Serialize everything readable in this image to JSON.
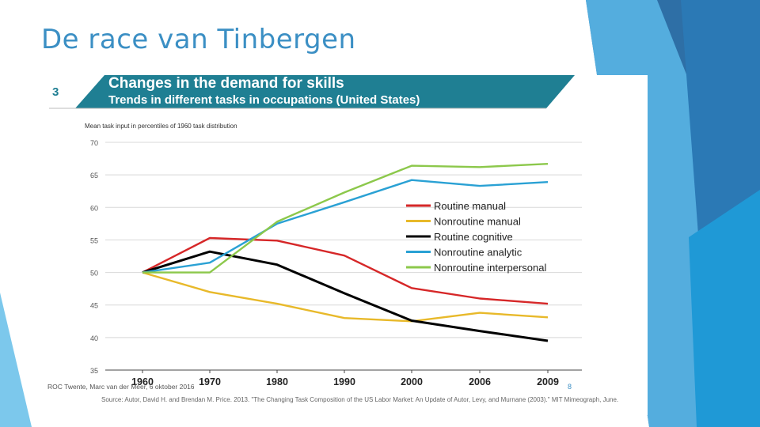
{
  "slide": {
    "title": "De race van Tinbergen",
    "footer": "ROC Twente, Marc van der Meer, 6 oktober 2016",
    "page_number": "8"
  },
  "figure": {
    "number": "3",
    "title": "Changes in the demand for skills",
    "subtitle": "Trends in different tasks in occupations (United States)",
    "source": "Source: Autor, David H. and Brendan M. Price. 2013. \"The Changing Task Composition of the US Labor Market: An Update of Autor, Levy, and Murnane (2003).\" MIT Mimeograph, June."
  },
  "colors": {
    "title": "#3b8fc4",
    "banner": "#1f7f93",
    "routine_manual": "#d62728",
    "nonroutine_manual": "#e8b92a",
    "routine_cognitive": "#000000",
    "nonroutine_analytic": "#2aa1d4",
    "nonroutine_interpersonal": "#8cc84b"
  },
  "chart_data": {
    "type": "line",
    "ylabel": "Mean task input in percentiles of 1960 task distribution",
    "categories": [
      "1960",
      "1970",
      "1980",
      "1990",
      "2000",
      "2006",
      "2009"
    ],
    "x": [
      1960,
      1970,
      1980,
      1990,
      2000,
      2006,
      2009
    ],
    "ylim": [
      35,
      70
    ],
    "yticks": [
      "70",
      "65",
      "60",
      "55",
      "50",
      "45",
      "40",
      "35"
    ],
    "grid": true,
    "legend": "center-right",
    "series": [
      {
        "name": "Routine manual",
        "color": "#d62728",
        "values": [
          50,
          55.3,
          54.9,
          52.6,
          47.6,
          46.0,
          45.2
        ]
      },
      {
        "name": "Nonroutine manual",
        "color": "#e8b92a",
        "values": [
          50,
          47.0,
          45.2,
          43.0,
          42.5,
          43.8,
          43.1
        ]
      },
      {
        "name": "Routine cognitive",
        "color": "#000000",
        "values": [
          50,
          53.2,
          51.2,
          46.8,
          42.6,
          41.0,
          39.5
        ]
      },
      {
        "name": "Nonroutine analytic",
        "color": "#2aa1d4",
        "values": [
          50,
          51.5,
          57.5,
          60.8,
          64.2,
          63.3,
          63.9
        ]
      },
      {
        "name": "Nonroutine interpersonal",
        "color": "#8cc84b",
        "values": [
          50,
          50.0,
          57.8,
          62.3,
          66.4,
          66.2,
          66.7
        ]
      }
    ]
  }
}
